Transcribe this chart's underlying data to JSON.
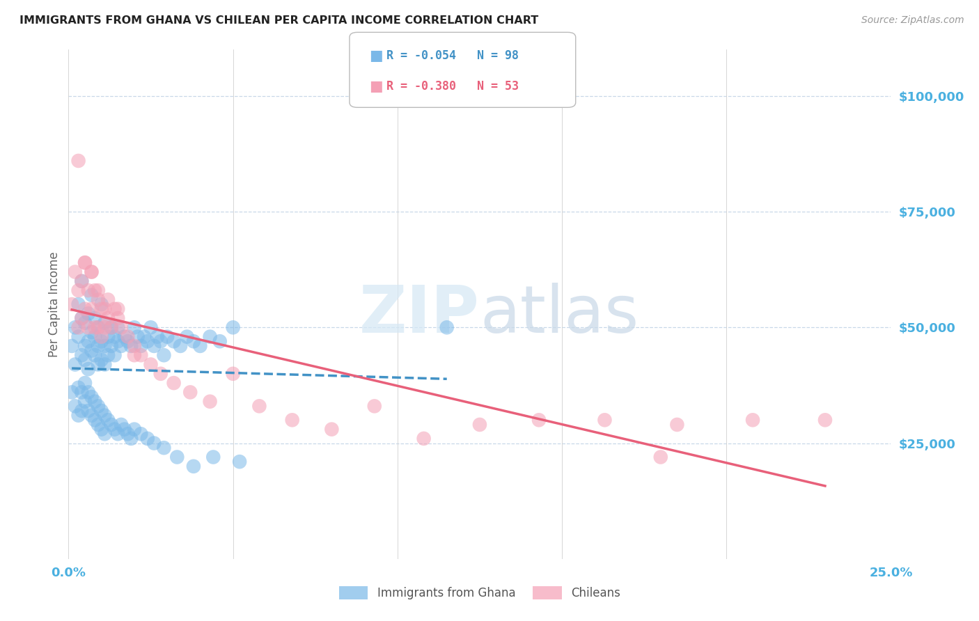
{
  "title": "IMMIGRANTS FROM GHANA VS CHILEAN PER CAPITA INCOME CORRELATION CHART",
  "source": "Source: ZipAtlas.com",
  "ylabel": "Per Capita Income",
  "legend_label1": "Immigrants from Ghana",
  "legend_label2": "Chileans",
  "legend_r1": "R = -0.054",
  "legend_n1": "N = 98",
  "legend_r2": "R = -0.380",
  "legend_n2": "N = 53",
  "watermark": "ZIPatlas",
  "ylim": [
    0,
    110000
  ],
  "xlim": [
    0.0,
    0.25
  ],
  "yticks": [
    25000,
    50000,
    75000,
    100000
  ],
  "ytick_labels": [
    "$25,000",
    "$50,000",
    "$75,000",
    "$100,000"
  ],
  "xticks": [
    0.0,
    0.05,
    0.1,
    0.15,
    0.2,
    0.25
  ],
  "color_blue": "#7ab8e8",
  "color_pink": "#f4a0b5",
  "color_blue_line": "#4292c6",
  "color_pink_line": "#e8607a",
  "color_axis_labels": "#4ab0e0",
  "blue_x": [
    0.001,
    0.002,
    0.002,
    0.003,
    0.003,
    0.004,
    0.004,
    0.004,
    0.005,
    0.005,
    0.005,
    0.006,
    0.006,
    0.006,
    0.007,
    0.007,
    0.007,
    0.008,
    0.008,
    0.008,
    0.009,
    0.009,
    0.009,
    0.01,
    0.01,
    0.01,
    0.011,
    0.011,
    0.011,
    0.012,
    0.012,
    0.013,
    0.013,
    0.014,
    0.014,
    0.015,
    0.015,
    0.016,
    0.017,
    0.018,
    0.019,
    0.02,
    0.021,
    0.022,
    0.023,
    0.024,
    0.025,
    0.026,
    0.027,
    0.028,
    0.029,
    0.03,
    0.032,
    0.034,
    0.036,
    0.038,
    0.04,
    0.043,
    0.046,
    0.05,
    0.001,
    0.002,
    0.003,
    0.003,
    0.004,
    0.004,
    0.005,
    0.005,
    0.006,
    0.006,
    0.007,
    0.007,
    0.008,
    0.008,
    0.009,
    0.009,
    0.01,
    0.01,
    0.011,
    0.011,
    0.012,
    0.013,
    0.014,
    0.015,
    0.016,
    0.017,
    0.018,
    0.019,
    0.02,
    0.022,
    0.024,
    0.026,
    0.029,
    0.033,
    0.038,
    0.044,
    0.052,
    0.115
  ],
  "blue_y": [
    46000,
    50000,
    42000,
    55000,
    48000,
    52000,
    44000,
    60000,
    46000,
    51000,
    43000,
    53000,
    47000,
    41000,
    49000,
    45000,
    57000,
    48000,
    44000,
    52000,
    46000,
    42000,
    50000,
    55000,
    47000,
    43000,
    51000,
    46000,
    42000,
    48000,
    44000,
    50000,
    46000,
    48000,
    44000,
    47000,
    50000,
    46000,
    48000,
    47000,
    46000,
    50000,
    48000,
    46000,
    48000,
    47000,
    50000,
    46000,
    48000,
    47000,
    44000,
    48000,
    47000,
    46000,
    48000,
    47000,
    46000,
    48000,
    47000,
    50000,
    36000,
    33000,
    37000,
    31000,
    36000,
    32000,
    38000,
    34000,
    36000,
    32000,
    35000,
    31000,
    34000,
    30000,
    33000,
    29000,
    32000,
    28000,
    31000,
    27000,
    30000,
    29000,
    28000,
    27000,
    29000,
    28000,
    27000,
    26000,
    28000,
    27000,
    26000,
    25000,
    24000,
    22000,
    20000,
    22000,
    21000,
    50000
  ],
  "pink_x": [
    0.001,
    0.002,
    0.003,
    0.003,
    0.004,
    0.004,
    0.005,
    0.005,
    0.006,
    0.006,
    0.007,
    0.007,
    0.008,
    0.008,
    0.009,
    0.009,
    0.01,
    0.01,
    0.011,
    0.011,
    0.012,
    0.013,
    0.014,
    0.015,
    0.016,
    0.018,
    0.02,
    0.022,
    0.025,
    0.028,
    0.032,
    0.037,
    0.043,
    0.05,
    0.058,
    0.068,
    0.08,
    0.093,
    0.108,
    0.125,
    0.143,
    0.163,
    0.185,
    0.208,
    0.23,
    0.003,
    0.005,
    0.007,
    0.009,
    0.012,
    0.015,
    0.02,
    0.18
  ],
  "pink_y": [
    55000,
    62000,
    58000,
    50000,
    60000,
    52000,
    64000,
    54000,
    58000,
    50000,
    62000,
    54000,
    58000,
    50000,
    56000,
    50000,
    54000,
    48000,
    54000,
    50000,
    52000,
    50000,
    54000,
    52000,
    50000,
    48000,
    46000,
    44000,
    42000,
    40000,
    38000,
    36000,
    34000,
    40000,
    33000,
    30000,
    28000,
    33000,
    26000,
    29000,
    30000,
    30000,
    29000,
    30000,
    30000,
    86000,
    64000,
    62000,
    58000,
    56000,
    54000,
    44000,
    22000
  ]
}
